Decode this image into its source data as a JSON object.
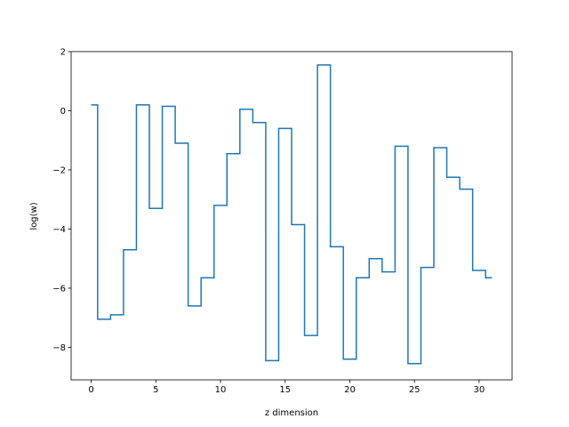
{
  "chart_data": {
    "type": "line",
    "drawstyle": "steps-mid",
    "title": "",
    "xlabel": "z dimension",
    "ylabel": "log(w)",
    "xlim": [
      -1.55,
      32.55
    ],
    "ylim": [
      -9.1,
      2.0
    ],
    "xticks": [
      0,
      5,
      10,
      15,
      20,
      25,
      30
    ],
    "yticks": [
      -8,
      -6,
      -4,
      -2,
      0,
      2
    ],
    "xtick_labels": [
      "0",
      "5",
      "10",
      "15",
      "20",
      "25",
      "30"
    ],
    "ytick_labels": [
      "−8",
      "−6",
      "−4",
      "−2",
      "0",
      "2"
    ],
    "grid": false,
    "legend": "none",
    "series": [
      {
        "color": "#1f77b4",
        "x": [
          0,
          1,
          2,
          3,
          4,
          5,
          6,
          7,
          8,
          9,
          10,
          11,
          12,
          13,
          14,
          15,
          16,
          17,
          18,
          19,
          20,
          21,
          22,
          23,
          24,
          25,
          26,
          27,
          28,
          29,
          30,
          31
        ],
        "y": [
          0.2,
          -7.05,
          -6.9,
          -4.7,
          0.2,
          -3.3,
          0.15,
          -1.1,
          -6.6,
          -5.65,
          -3.2,
          -1.45,
          0.05,
          -0.4,
          -8.45,
          -0.6,
          -3.85,
          -7.6,
          1.55,
          -4.6,
          -8.4,
          -5.65,
          -5.0,
          -5.45,
          -1.2,
          -8.55,
          -5.3,
          -1.25,
          -2.25,
          -2.65,
          -5.4,
          -5.65
        ]
      }
    ]
  }
}
